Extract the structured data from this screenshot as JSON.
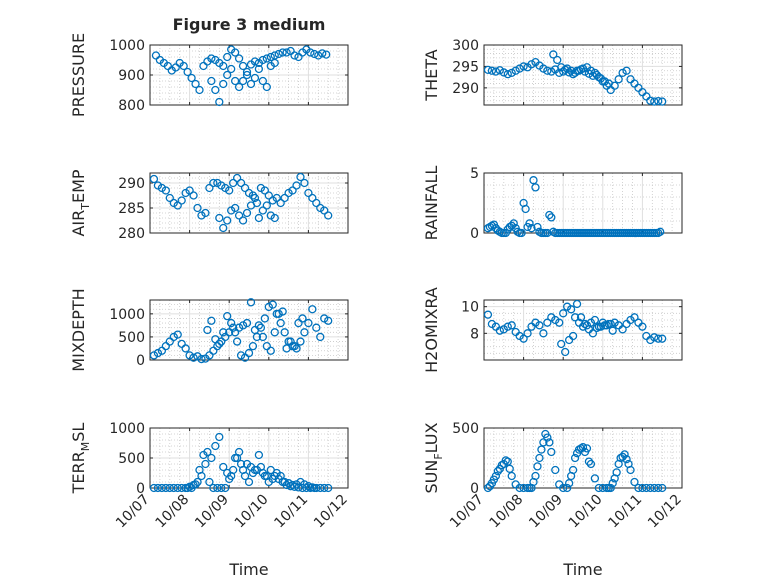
{
  "figure_title": "Figure 3 medium",
  "x_tick_labels": [
    "10/07",
    "10/08",
    "10/09",
    "10/10",
    "10/11",
    "10/12"
  ],
  "x_label": "Time",
  "marker_color": "#0072bd",
  "chart_data": [
    {
      "type": "scatter",
      "name": "pressure",
      "title": "Figure 3 medium",
      "ylabel_main": "PRESSURE",
      "ylabel_sub": "",
      "ylabel_tail": "",
      "xlim": [
        0,
        5
      ],
      "ylim": [
        800,
        1000
      ],
      "yticks": [
        800,
        900,
        1000
      ],
      "ytick_labels": [
        "800",
        "900",
        "1000"
      ],
      "ygrid_minor_step": 20,
      "show_xticklabels": false,
      "xlabel": "",
      "x": [
        0.15,
        0.25,
        0.35,
        0.45,
        0.55,
        0.65,
        0.75,
        0.85,
        0.95,
        1.05,
        1.15,
        1.25,
        1.35,
        1.45,
        1.55,
        1.65,
        1.75,
        1.85,
        1.95,
        2.05,
        2.15,
        2.25,
        2.35,
        2.45,
        2.55,
        2.65,
        2.75,
        2.85,
        2.95,
        3.05,
        3.15,
        3.25,
        3.35,
        3.45,
        3.55,
        3.65,
        3.75,
        3.85,
        3.95,
        4.05,
        4.15,
        4.25,
        4.35,
        4.45,
        1.55,
        1.65,
        1.75,
        1.85,
        1.95,
        2.05,
        2.15,
        2.25,
        2.35,
        2.45,
        2.55,
        2.65,
        2.75,
        2.85,
        2.95,
        3.05,
        3.15
      ],
      "y": [
        965,
        950,
        940,
        930,
        915,
        925,
        940,
        930,
        910,
        890,
        870,
        850,
        930,
        945,
        955,
        950,
        940,
        930,
        960,
        985,
        975,
        955,
        930,
        910,
        935,
        945,
        940,
        950,
        955,
        960,
        965,
        970,
        975,
        975,
        980,
        965,
        960,
        975,
        985,
        975,
        970,
        965,
        972,
        968,
        880,
        850,
        810,
        870,
        900,
        920,
        880,
        860,
        880,
        900,
        870,
        890,
        920,
        880,
        860,
        930,
        940
      ]
    },
    {
      "type": "scatter",
      "name": "theta",
      "ylabel_main": "THETA",
      "ylabel_sub": "",
      "ylabel_tail": "",
      "xlim": [
        0,
        5
      ],
      "ylim": [
        286,
        300
      ],
      "yticks": [
        290,
        295,
        300
      ],
      "ytick_labels": [
        "290",
        "295",
        "300"
      ],
      "ygrid_minor_step": 1,
      "show_xticklabels": false,
      "xlabel": "",
      "x": [
        0.1,
        0.2,
        0.3,
        0.4,
        0.5,
        0.6,
        0.7,
        0.8,
        0.9,
        1.0,
        1.1,
        1.2,
        1.3,
        1.4,
        1.5,
        1.6,
        1.7,
        1.8,
        1.9,
        2.0,
        2.1,
        2.2,
        2.3,
        2.4,
        2.5,
        2.6,
        2.7,
        2.8,
        2.9,
        3.0,
        3.1,
        3.2,
        3.3,
        3.4,
        3.5,
        3.6,
        3.7,
        3.8,
        3.9,
        4.0,
        4.1,
        4.2,
        4.3,
        4.4,
        4.5,
        1.75,
        1.85,
        1.95,
        2.05,
        2.15,
        2.25,
        2.35,
        2.45,
        2.55,
        2.65,
        2.75,
        2.85,
        2.95,
        3.05,
        3.15
      ],
      "y": [
        294.2,
        294.0,
        293.8,
        294.1,
        293.6,
        293.2,
        293.5,
        294.0,
        294.5,
        295.0,
        294.8,
        295.5,
        296.0,
        295.2,
        294.5,
        294.0,
        293.8,
        294.3,
        293.5,
        293.8,
        294.5,
        294.0,
        293.5,
        294.0,
        294.5,
        294.8,
        294.0,
        293.5,
        292.5,
        291.5,
        290.5,
        289.5,
        290.5,
        292.0,
        293.5,
        294.0,
        292.0,
        291.0,
        290.0,
        289.0,
        288.0,
        287.0,
        286.8,
        286.9,
        286.8,
        297.8,
        296.5,
        294.8,
        294.2,
        293.6,
        293.2,
        294.0,
        294.3,
        293.8,
        293.3,
        292.8,
        293.0,
        292.2,
        291.5,
        291.0
      ]
    },
    {
      "type": "scatter",
      "name": "air_temp",
      "ylabel_main": "AIR",
      "ylabel_sub": "T",
      "ylabel_tail": "EMP",
      "xlim": [
        0,
        5
      ],
      "ylim": [
        280,
        292
      ],
      "yticks": [
        280,
        285,
        290
      ],
      "ytick_labels": [
        "280",
        "285",
        "290"
      ],
      "ygrid_minor_step": 1,
      "show_xticklabels": false,
      "xlabel": "",
      "x": [
        0.1,
        0.2,
        0.3,
        0.4,
        0.5,
        0.6,
        0.7,
        0.8,
        0.9,
        1.0,
        1.1,
        1.2,
        1.3,
        1.4,
        1.5,
        1.6,
        1.7,
        1.8,
        1.9,
        2.0,
        2.1,
        2.2,
        2.3,
        2.4,
        2.5,
        2.6,
        2.7,
        2.8,
        2.9,
        3.0,
        3.1,
        3.2,
        3.3,
        3.4,
        3.5,
        3.6,
        3.7,
        3.8,
        3.9,
        4.0,
        4.1,
        4.2,
        4.3,
        4.4,
        4.5,
        1.75,
        1.85,
        1.95,
        2.05,
        2.15,
        2.25,
        2.35,
        2.45,
        2.55,
        2.65,
        2.75,
        2.85,
        2.95,
        3.05,
        3.15
      ],
      "y": [
        290.8,
        289.5,
        289.0,
        288.5,
        287.0,
        286.0,
        285.5,
        286.5,
        288.0,
        288.5,
        287.5,
        285.0,
        283.5,
        284.0,
        289.0,
        290.0,
        290.0,
        289.5,
        289.0,
        288.5,
        290.0,
        291.0,
        290.0,
        289.0,
        288.0,
        287.5,
        286.0,
        289.0,
        288.5,
        287.5,
        286.5,
        287.0,
        286.0,
        287.0,
        288.0,
        288.5,
        289.5,
        291.2,
        290.0,
        288.0,
        287.0,
        286.0,
        285.0,
        284.5,
        283.5,
        283.0,
        281.0,
        282.5,
        284.5,
        285.0,
        283.5,
        282.5,
        284.0,
        285.5,
        287.0,
        283.0,
        284.5,
        285.5,
        283.5,
        283.0
      ]
    },
    {
      "type": "scatter",
      "name": "rainfall",
      "ylabel_main": "RAINFALL",
      "ylabel_sub": "",
      "ylabel_tail": "",
      "xlim": [
        0,
        5
      ],
      "ylim": [
        0,
        5
      ],
      "yticks": [
        0,
        5
      ],
      "ytick_labels": [
        "0",
        "5"
      ],
      "ygrid_minor_step": 1,
      "show_xticklabels": false,
      "xlabel": "",
      "x": [
        0.1,
        0.15,
        0.2,
        0.25,
        0.3,
        0.35,
        0.4,
        0.45,
        0.5,
        0.55,
        0.6,
        0.65,
        0.7,
        0.75,
        0.8,
        0.85,
        0.9,
        0.95,
        1.0,
        1.05,
        1.1,
        1.15,
        1.2,
        1.25,
        1.3,
        1.35,
        1.4,
        1.45,
        1.5,
        1.55,
        1.6,
        1.65,
        1.7,
        1.75,
        1.8,
        1.85,
        1.9,
        1.95,
        2.0,
        2.05,
        2.1,
        2.15,
        2.2,
        2.25,
        2.3,
        2.35,
        2.4,
        2.45,
        2.5,
        2.55,
        2.6,
        2.65,
        2.7,
        2.75,
        2.8,
        2.85,
        2.9,
        2.95,
        3.0,
        3.05,
        3.1,
        3.15,
        3.2,
        3.25,
        3.3,
        3.35,
        3.4,
        3.45,
        3.5,
        3.55,
        3.6,
        3.65,
        3.7,
        3.75,
        3.8,
        3.85,
        3.9,
        3.95,
        4.0,
        4.05,
        4.1,
        4.15,
        4.2,
        4.25,
        4.3,
        4.35,
        4.4,
        4.45
      ],
      "y": [
        0.4,
        0.5,
        0.6,
        0.7,
        0.4,
        0.2,
        0.1,
        0.0,
        0.0,
        0.0,
        0.3,
        0.5,
        0.6,
        0.8,
        0.4,
        0.1,
        0.0,
        0.0,
        2.5,
        2.0,
        0.5,
        0.8,
        0.4,
        4.4,
        3.8,
        0.5,
        0.1,
        0.0,
        0.0,
        0.0,
        0.0,
        1.5,
        1.3,
        0.1,
        0.0,
        0.0,
        0.0,
        0.0,
        0.0,
        0.0,
        0.0,
        0.0,
        0.0,
        0.0,
        0.0,
        0.0,
        0.0,
        0.0,
        0.0,
        0.0,
        0.0,
        0.0,
        0.0,
        0.0,
        0.0,
        0.0,
        0.0,
        0.0,
        0.0,
        0.0,
        0.0,
        0.0,
        0.0,
        0.0,
        0.0,
        0.0,
        0.0,
        0.0,
        0.0,
        0.0,
        0.0,
        0.0,
        0.0,
        0.0,
        0.0,
        0.0,
        0.0,
        0.0,
        0.0,
        0.0,
        0.0,
        0.0,
        0.0,
        0.0,
        0.0,
        0.0,
        0.0,
        0.1
      ]
    },
    {
      "type": "scatter",
      "name": "mixdepth",
      "ylabel_main": "MIXDEPTH",
      "ylabel_sub": "",
      "ylabel_tail": "",
      "xlim": [
        0,
        5
      ],
      "ylim": [
        0,
        1300
      ],
      "yticks": [
        0,
        500,
        1000
      ],
      "ytick_labels": [
        "0",
        "500",
        "1000"
      ],
      "ygrid_minor_step": 100,
      "show_xticklabels": false,
      "xlabel": "",
      "x": [
        0.1,
        0.2,
        0.3,
        0.4,
        0.5,
        0.6,
        0.7,
        0.8,
        0.9,
        1.0,
        1.1,
        1.2,
        1.3,
        1.4,
        1.5,
        1.6,
        1.7,
        1.8,
        1.9,
        2.0,
        2.1,
        2.2,
        2.3,
        2.4,
        2.5,
        2.6,
        2.7,
        2.8,
        2.9,
        3.0,
        3.1,
        3.2,
        3.3,
        3.4,
        3.5,
        3.6,
        3.7,
        3.8,
        3.9,
        4.0,
        4.1,
        4.2,
        4.3,
        4.4,
        4.5,
        1.45,
        1.55,
        1.65,
        1.75,
        1.85,
        1.95,
        2.05,
        2.15,
        2.25,
        2.35,
        2.45,
        2.55,
        2.65,
        2.75,
        2.85,
        2.95,
        3.05,
        3.15,
        3.25,
        3.35,
        3.45,
        3.55,
        3.65,
        3.75,
        3.85
      ],
      "y": [
        100,
        150,
        200,
        300,
        400,
        500,
        550,
        350,
        250,
        100,
        50,
        80,
        20,
        30,
        100,
        200,
        300,
        400,
        500,
        600,
        700,
        400,
        100,
        50,
        150,
        300,
        500,
        700,
        900,
        1150,
        1200,
        1000,
        800,
        600,
        400,
        300,
        250,
        400,
        600,
        800,
        1100,
        700,
        500,
        900,
        850,
        650,
        850,
        450,
        350,
        600,
        950,
        800,
        600,
        700,
        750,
        800,
        1250,
        650,
        750,
        500,
        300,
        200,
        600,
        1000,
        1050,
        250,
        400,
        300,
        800,
        900
      ]
    },
    {
      "type": "scatter",
      "name": "h2omixra",
      "ylabel_main": "H2OMIXRA",
      "ylabel_sub": "",
      "ylabel_tail": "",
      "xlim": [
        0,
        5
      ],
      "ylim": [
        6,
        10.5
      ],
      "yticks": [
        8,
        10
      ],
      "ytick_labels": [
        "8",
        "10"
      ],
      "ygrid_minor_step": 0.5,
      "show_xticklabels": false,
      "xlabel": "",
      "x": [
        0.1,
        0.2,
        0.3,
        0.4,
        0.5,
        0.6,
        0.7,
        0.8,
        0.9,
        1.0,
        1.1,
        1.2,
        1.3,
        1.4,
        1.5,
        1.6,
        1.7,
        1.8,
        1.9,
        2.0,
        2.1,
        2.2,
        2.3,
        2.4,
        2.5,
        2.6,
        2.7,
        2.8,
        2.9,
        3.0,
        3.1,
        3.2,
        3.3,
        3.4,
        3.5,
        3.6,
        3.7,
        3.8,
        3.9,
        4.0,
        4.1,
        4.2,
        4.3,
        4.4,
        4.5,
        1.95,
        2.05,
        2.15,
        2.25,
        2.35,
        2.45,
        2.55,
        2.65,
        2.75,
        2.85,
        2.95,
        3.05,
        3.15,
        3.25
      ],
      "y": [
        9.4,
        8.7,
        8.5,
        8.2,
        8.3,
        8.5,
        8.6,
        8.1,
        7.8,
        7.6,
        8.0,
        8.5,
        8.8,
        8.6,
        8.0,
        8.8,
        9.2,
        9.0,
        8.8,
        9.5,
        10.0,
        9.8,
        9.2,
        8.8,
        8.5,
        8.6,
        8.8,
        9.0,
        8.5,
        8.8,
        8.6,
        8.7,
        8.8,
        8.6,
        8.3,
        8.7,
        9.0,
        9.2,
        8.8,
        8.5,
        7.8,
        7.5,
        7.7,
        7.6,
        7.6,
        7.2,
        6.6,
        7.5,
        7.8,
        10.2,
        9.2,
        8.7,
        8.3,
        8.0,
        8.4,
        8.5,
        8.6,
        8.7,
        8.2
      ]
    },
    {
      "type": "scatter",
      "name": "terr_msl",
      "ylabel_main": "TERR",
      "ylabel_sub": "M",
      "ylabel_tail": "SL",
      "xlim": [
        0,
        5
      ],
      "ylim": [
        0,
        1000
      ],
      "yticks": [
        0,
        500,
        1000
      ],
      "ytick_labels": [
        "0",
        "500",
        "1000"
      ],
      "ygrid_minor_step": 100,
      "show_xticklabels": true,
      "xlabel": "Time",
      "x": [
        0.1,
        0.2,
        0.3,
        0.4,
        0.5,
        0.6,
        0.7,
        0.8,
        0.9,
        1.0,
        1.1,
        1.2,
        1.3,
        1.4,
        1.5,
        1.6,
        1.7,
        1.8,
        1.9,
        2.0,
        2.1,
        2.2,
        2.3,
        2.4,
        2.5,
        2.6,
        2.7,
        2.8,
        2.9,
        3.0,
        3.1,
        3.2,
        3.3,
        3.4,
        3.5,
        3.6,
        3.7,
        3.8,
        3.9,
        4.0,
        4.1,
        4.2,
        4.3,
        4.4,
        4.5,
        0.95,
        1.05,
        1.15,
        1.25,
        1.35,
        1.45,
        1.55,
        1.65,
        1.75,
        1.85,
        1.95,
        2.05,
        2.15,
        2.25,
        2.35,
        2.45,
        2.55,
        2.65,
        2.75,
        2.85,
        2.95,
        3.05,
        3.15,
        3.25,
        3.35,
        3.45,
        3.55,
        3.65,
        3.75,
        3.85,
        3.95,
        4.05,
        4.15
      ],
      "y": [
        0,
        0,
        0,
        0,
        0,
        0,
        0,
        0,
        0,
        20,
        50,
        100,
        200,
        400,
        100,
        0,
        0,
        0,
        0,
        150,
        300,
        500,
        400,
        200,
        100,
        250,
        300,
        350,
        200,
        100,
        150,
        250,
        200,
        100,
        80,
        50,
        60,
        100,
        60,
        30,
        10,
        0,
        0,
        0,
        0,
        0,
        0,
        60,
        300,
        550,
        600,
        500,
        700,
        850,
        350,
        250,
        200,
        500,
        600,
        300,
        400,
        350,
        300,
        550,
        250,
        200,
        300,
        200,
        150,
        100,
        50,
        30,
        20,
        10,
        0,
        0,
        0,
        0
      ]
    },
    {
      "type": "scatter",
      "name": "sun_flux",
      "ylabel_main": "SUN",
      "ylabel_sub": "F",
      "ylabel_tail": "LUX",
      "xlim": [
        0,
        5
      ],
      "ylim": [
        0,
        500
      ],
      "yticks": [
        0,
        500
      ],
      "ytick_labels": [
        "0",
        "500"
      ],
      "ygrid_minor_step": 50,
      "show_xticklabels": true,
      "xlabel": "Time",
      "x": [
        0.1,
        0.2,
        0.3,
        0.4,
        0.5,
        0.6,
        0.7,
        0.8,
        0.9,
        1.0,
        1.1,
        1.2,
        1.3,
        1.4,
        1.5,
        1.6,
        1.7,
        1.8,
        1.9,
        2.0,
        2.1,
        2.2,
        2.3,
        2.4,
        2.5,
        2.6,
        2.7,
        2.8,
        2.9,
        3.0,
        3.1,
        3.2,
        3.3,
        3.4,
        3.5,
        3.6,
        3.7,
        3.8,
        3.9,
        4.0,
        4.1,
        4.2,
        4.3,
        4.4,
        4.5,
        0.15,
        0.25,
        0.35,
        0.45,
        0.55,
        0.65,
        1.15,
        1.25,
        1.35,
        1.45,
        1.55,
        1.65,
        2.15,
        2.25,
        2.35,
        2.45,
        2.55,
        2.65,
        3.15,
        3.25,
        3.35,
        3.45,
        3.55,
        3.65
      ],
      "y": [
        0,
        40,
        100,
        160,
        200,
        220,
        100,
        30,
        0,
        0,
        0,
        0,
        100,
        250,
        380,
        420,
        300,
        150,
        30,
        0,
        0,
        100,
        250,
        320,
        340,
        330,
        200,
        80,
        0,
        0,
        0,
        0,
        80,
        200,
        260,
        240,
        150,
        50,
        0,
        0,
        0,
        0,
        0,
        0,
        0,
        15,
        70,
        140,
        190,
        230,
        160,
        0,
        50,
        180,
        320,
        450,
        380,
        40,
        150,
        290,
        330,
        300,
        220,
        0,
        40,
        130,
        250,
        280,
        200
      ]
    }
  ]
}
